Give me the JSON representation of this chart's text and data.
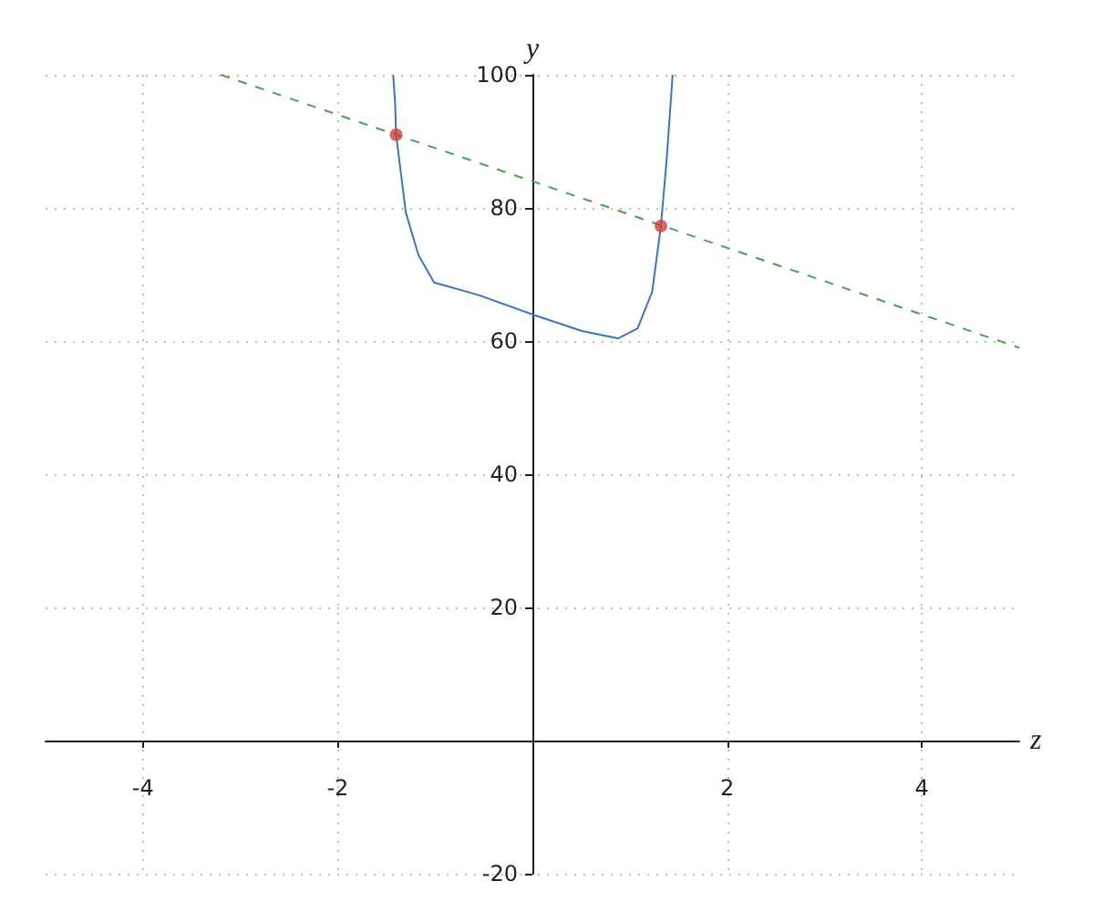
{
  "chart_data": {
    "type": "line",
    "xlabel": "z",
    "ylabel": "y",
    "xlim": [
      -5,
      5
    ],
    "ylim": [
      -20,
      100
    ],
    "xticks": [
      -4,
      -2,
      2,
      4
    ],
    "yticks": [
      -20,
      20,
      40,
      60,
      80,
      100
    ],
    "grid": true,
    "marker": "none",
    "series": [
      {
        "color": "#3a75c4",
        "line_style": "solid",
        "x": [
          -1.43,
          -1.41,
          -1.4,
          -1.3,
          -1.17,
          -1.01,
          -0.55,
          0.02,
          0.51,
          0.88,
          1.08,
          1.23,
          1.32,
          1.38,
          1.44
        ],
        "values": [
          100,
          95.7,
          91,
          79.3,
          72.9,
          68.8,
          66.9,
          63.9,
          61.5,
          60.4,
          61.9,
          67.4,
          77.3,
          87.5,
          100
        ]
      },
      {
        "type": "line",
        "color": "#4a9f5a",
        "line_style": "dashed",
        "x": [
          -3.2,
          5
        ],
        "values": [
          100,
          59
        ]
      },
      {
        "type": "scatter",
        "color": "#d0413a",
        "marker": "circle",
        "x": [
          -1.4,
          1.32
        ],
        "values": [
          91,
          77.3
        ]
      }
    ]
  }
}
